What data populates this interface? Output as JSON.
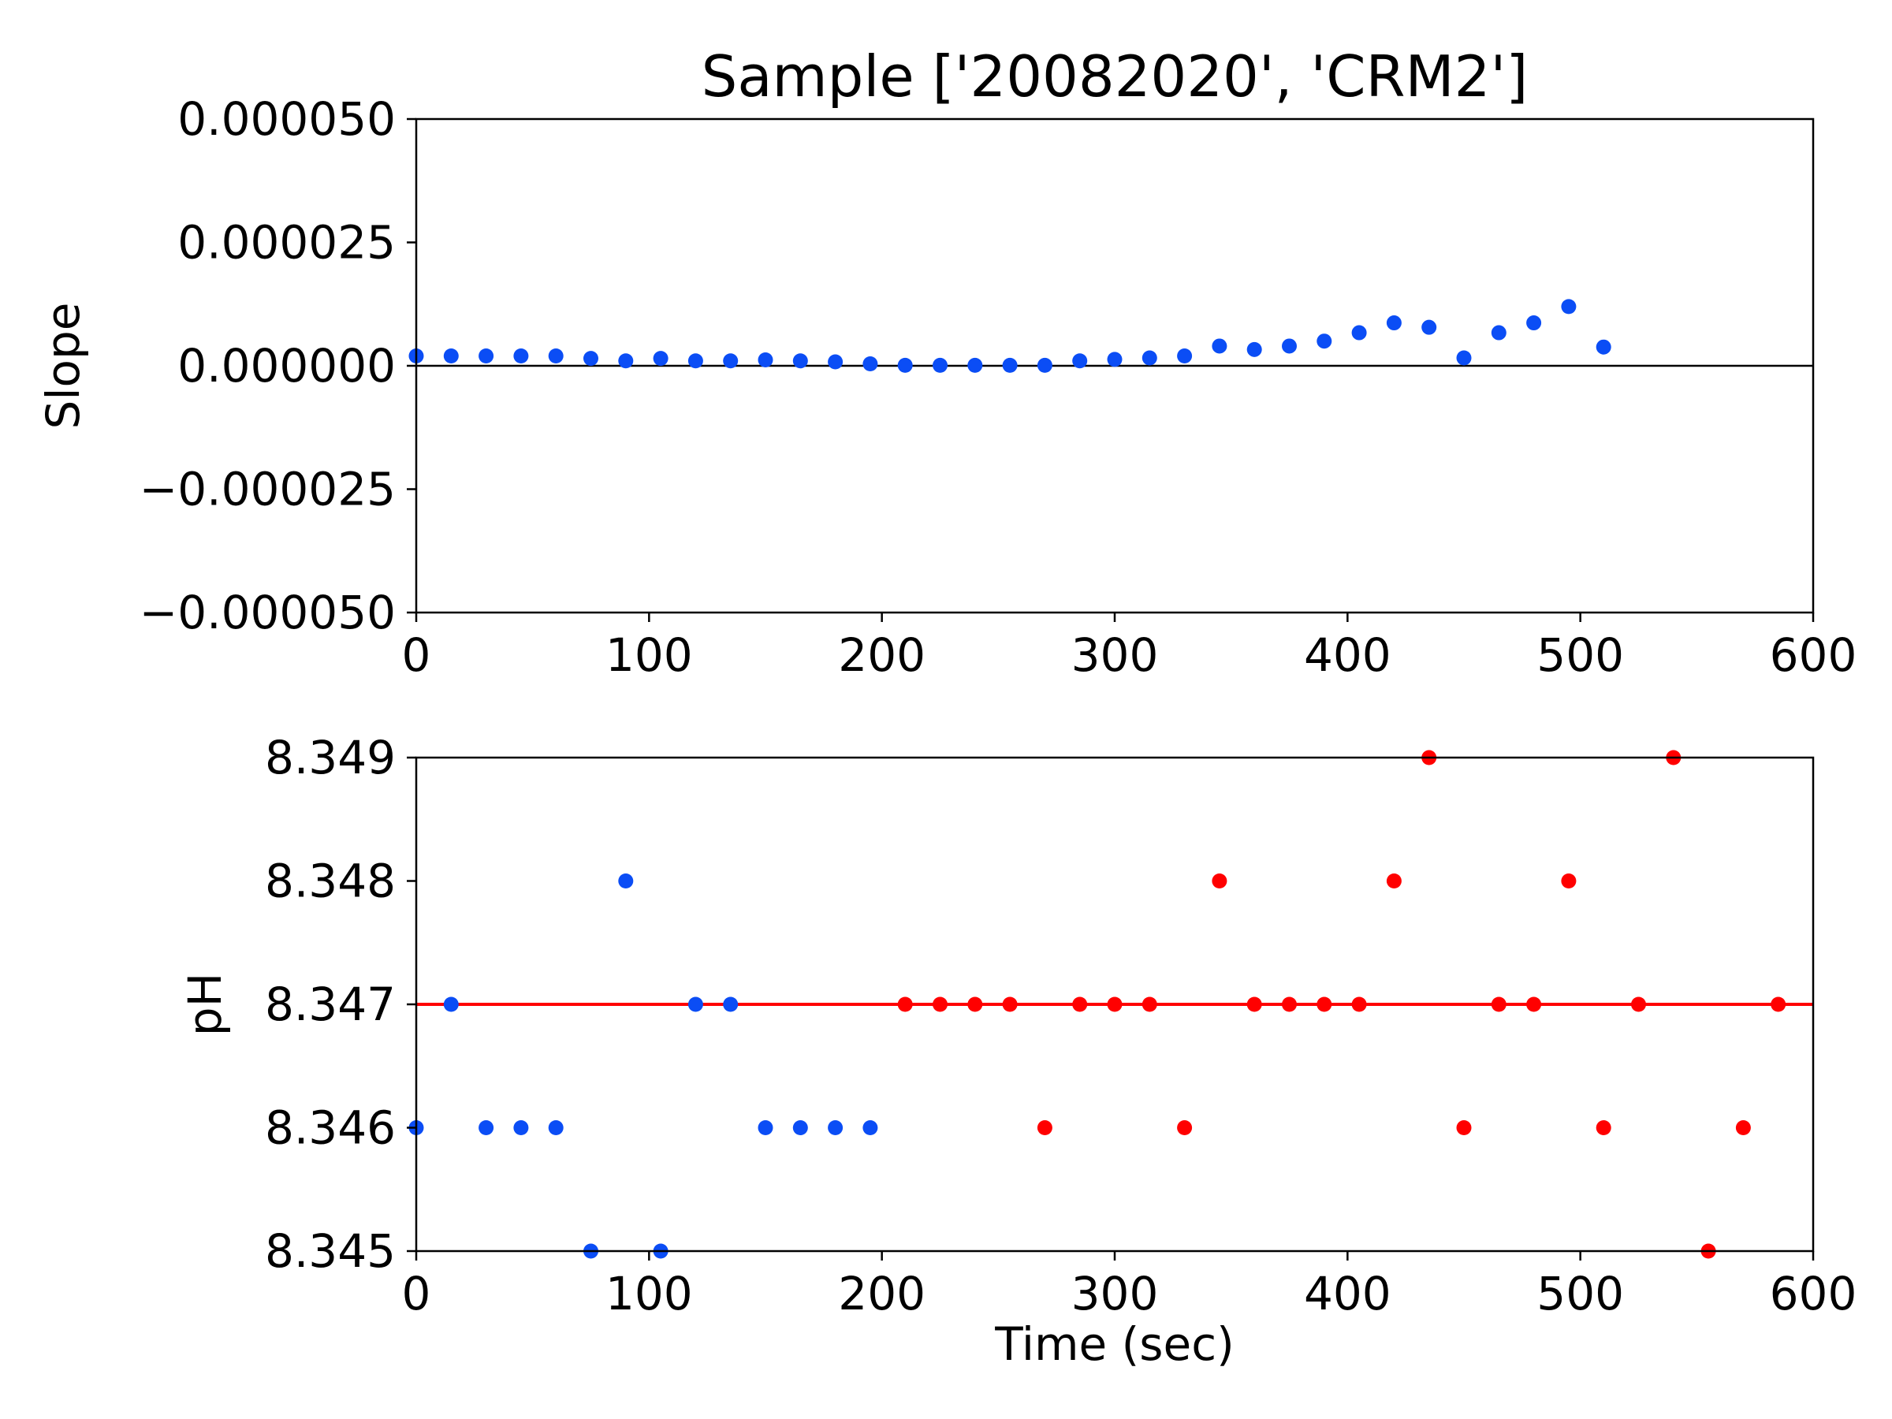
{
  "figure": {
    "title": "Sample ['20082020', 'CRM2']"
  },
  "chart_data": [
    {
      "type": "scatter",
      "title": "Sample ['20082020', 'CRM2']",
      "xlabel": "",
      "ylabel": "Slope",
      "xlim": [
        0,
        600
      ],
      "ylim": [
        -5e-05,
        5e-05
      ],
      "xticks": [
        0,
        100,
        200,
        300,
        400,
        500,
        600
      ],
      "xtick_labels": [
        "0",
        "100",
        "200",
        "300",
        "400",
        "500",
        "600"
      ],
      "yticks": [
        -5e-05,
        -2.5e-05,
        0,
        2.5e-05,
        5e-05
      ],
      "ytick_labels": [
        "−0.000050",
        "−0.000025",
        "0.000000",
        "0.000025",
        "0.000050"
      ],
      "grid": false,
      "hline": {
        "y": 0,
        "color": "#000000"
      },
      "series": [
        {
          "color": "#0b4df5",
          "points": [
            [
              0,
              2e-06
            ],
            [
              15,
              2e-06
            ],
            [
              30,
              2e-06
            ],
            [
              45,
              2e-06
            ],
            [
              60,
              2e-06
            ],
            [
              75,
              1.5e-06
            ],
            [
              90,
              1e-06
            ],
            [
              105,
              1.5e-06
            ],
            [
              120,
              1e-06
            ],
            [
              135,
              1e-06
            ],
            [
              150,
              1.2e-06
            ],
            [
              165,
              1e-06
            ],
            [
              180,
              8e-07
            ],
            [
              195,
              4e-07
            ],
            [
              210,
              1e-07
            ],
            [
              225,
              1e-07
            ],
            [
              240,
              1e-07
            ],
            [
              255,
              1e-07
            ],
            [
              270,
              1e-07
            ],
            [
              285,
              1e-06
            ],
            [
              300,
              1.3e-06
            ],
            [
              315,
              1.6e-06
            ],
            [
              330,
              2e-06
            ],
            [
              345,
              4e-06
            ],
            [
              360,
              3.3e-06
            ],
            [
              375,
              4e-06
            ],
            [
              390,
              5e-06
            ],
            [
              405,
              6.7e-06
            ],
            [
              420,
              8.7e-06
            ],
            [
              435,
              7.8e-06
            ],
            [
              450,
              1.6e-06
            ],
            [
              465,
              6.7e-06
            ],
            [
              480,
              8.7e-06
            ],
            [
              495,
              1.2e-05
            ],
            [
              510,
              3.8e-06
            ]
          ]
        }
      ]
    },
    {
      "type": "scatter",
      "title": "",
      "xlabel": "Time (sec)",
      "ylabel": "pH",
      "xlim": [
        0,
        600
      ],
      "ylim": [
        8.345,
        8.349
      ],
      "xticks": [
        0,
        100,
        200,
        300,
        400,
        500,
        600
      ],
      "xtick_labels": [
        "0",
        "100",
        "200",
        "300",
        "400",
        "500",
        "600"
      ],
      "yticks": [
        8.345,
        8.346,
        8.347,
        8.348,
        8.349
      ],
      "ytick_labels": [
        "8.345",
        "8.346",
        "8.347",
        "8.348",
        "8.349"
      ],
      "grid": false,
      "hline": {
        "y": 8.347,
        "color": "#ff0000"
      },
      "series": [
        {
          "color": "#0b4df5",
          "points": [
            [
              0,
              8.346
            ],
            [
              15,
              8.347
            ],
            [
              30,
              8.346
            ],
            [
              45,
              8.346
            ],
            [
              60,
              8.346
            ],
            [
              75,
              8.345
            ],
            [
              90,
              8.348
            ],
            [
              105,
              8.345
            ],
            [
              120,
              8.347
            ],
            [
              135,
              8.347
            ],
            [
              150,
              8.346
            ],
            [
              165,
              8.346
            ],
            [
              180,
              8.346
            ],
            [
              195,
              8.346
            ]
          ]
        },
        {
          "color": "#ff0000",
          "points": [
            [
              210,
              8.347
            ],
            [
              225,
              8.347
            ],
            [
              240,
              8.347
            ],
            [
              255,
              8.347
            ],
            [
              270,
              8.346
            ],
            [
              285,
              8.347
            ],
            [
              300,
              8.347
            ],
            [
              315,
              8.347
            ],
            [
              330,
              8.346
            ],
            [
              345,
              8.348
            ],
            [
              360,
              8.347
            ],
            [
              375,
              8.347
            ],
            [
              390,
              8.347
            ],
            [
              405,
              8.347
            ],
            [
              420,
              8.348
            ],
            [
              435,
              8.349
            ],
            [
              450,
              8.346
            ],
            [
              465,
              8.347
            ],
            [
              480,
              8.347
            ],
            [
              495,
              8.348
            ],
            [
              510,
              8.346
            ],
            [
              525,
              8.347
            ],
            [
              540,
              8.349
            ],
            [
              555,
              8.345
            ],
            [
              570,
              8.346
            ],
            [
              585,
              8.347
            ]
          ]
        }
      ]
    }
  ]
}
